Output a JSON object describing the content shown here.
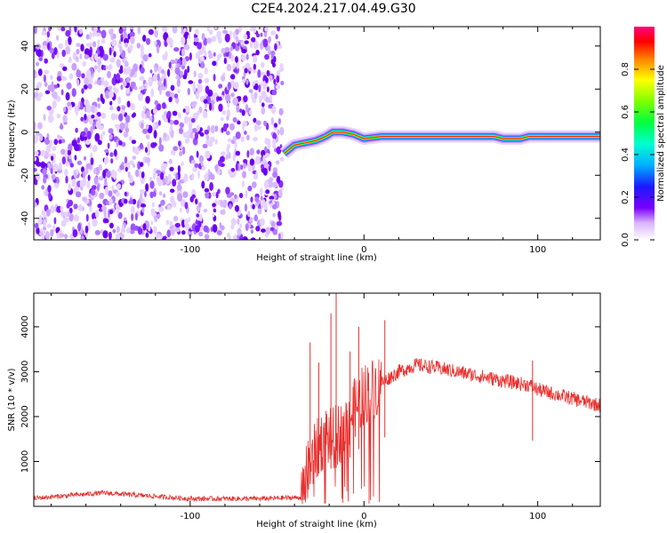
{
  "title": "C2E4.2024.217.04.49.G30",
  "chart_data": [
    {
      "type": "heatmap",
      "name": "spectrogram",
      "xlabel": "Height of straight line (km)",
      "ylabel": "Frequency (Hz)",
      "xlim": [
        -190,
        136
      ],
      "ylim": [
        -50,
        49
      ],
      "xticks": [
        -100,
        0,
        100
      ],
      "yticks": [
        -40,
        -20,
        0,
        20,
        40
      ],
      "noise_region_x": [
        -190,
        -47
      ],
      "signal_track": {
        "x": [
          -46,
          -40,
          -34,
          -28,
          -22,
          -18,
          -12,
          -6,
          0,
          10,
          30,
          60,
          75,
          80,
          90,
          95,
          110,
          136
        ],
        "freq": [
          -10,
          -6,
          -5,
          -4,
          -2,
          0,
          0,
          -1,
          -3,
          -2,
          -2,
          -2,
          -2,
          -3,
          -3,
          -2,
          -2,
          -2
        ]
      },
      "colorbar": {
        "label": "Normalized spectral amplitude",
        "ticks": [
          0.0,
          0.2,
          0.4,
          0.6,
          0.8
        ],
        "range": [
          0,
          1
        ]
      }
    },
    {
      "type": "line",
      "name": "snr",
      "xlabel": "Height of straight line (km)",
      "ylabel": "SNR (10 * v/v)",
      "xlim": [
        -190,
        136
      ],
      "ylim": [
        0,
        4750
      ],
      "xticks": [
        -100,
        0,
        100
      ],
      "yticks": [
        1000,
        2000,
        3000,
        4000
      ],
      "color": "#e8302e",
      "envelope": {
        "x": [
          -190,
          -150,
          -100,
          -60,
          -36,
          -33,
          -28,
          -22,
          -18,
          -12,
          -5,
          0,
          10,
          20,
          30,
          40,
          60,
          80,
          95,
          100,
          110,
          125,
          136
        ],
        "y": [
          180,
          300,
          170,
          170,
          200,
          700,
          1200,
          1600,
          1500,
          1700,
          2200,
          2500,
          2750,
          3000,
          3150,
          3100,
          2950,
          2800,
          2700,
          2600,
          2500,
          2350,
          2250
        ]
      },
      "spikes": [
        {
          "x": -31,
          "y": 3650
        },
        {
          "x": -26,
          "y": 3200
        },
        {
          "x": -19,
          "y": 4300
        },
        {
          "x": -16,
          "y": 4750
        },
        {
          "x": -8,
          "y": 3450
        },
        {
          "x": -3,
          "y": 4000
        },
        {
          "x": 12,
          "y": 4150
        },
        {
          "x": 97,
          "y": 3250
        }
      ]
    }
  ]
}
